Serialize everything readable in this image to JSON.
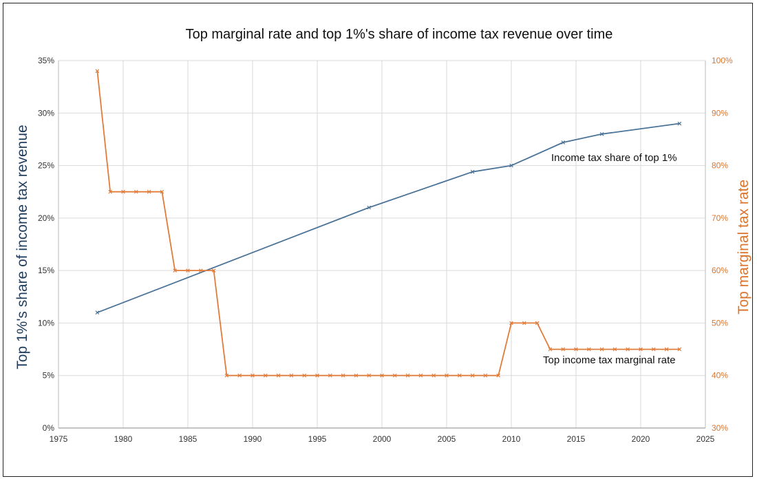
{
  "chart_data": {
    "type": "line",
    "title": "Top marginal rate and top 1%'s share of income tax revenue over time",
    "ylabel": "Top 1%'s share of income tax revenue",
    "y2label": "Top marginal tax rate",
    "xlim": [
      1975,
      2025
    ],
    "ylim": [
      0,
      35
    ],
    "y2lim": [
      30,
      100
    ],
    "x_ticks": [
      "1975",
      "1980",
      "1985",
      "1990",
      "1995",
      "2000",
      "2005",
      "2010",
      "2015",
      "2020",
      "2025"
    ],
    "y_ticks": [
      "0%",
      "5%",
      "10%",
      "15%",
      "20%",
      "25%",
      "30%",
      "35%"
    ],
    "y2_ticks": [
      "30%",
      "40%",
      "50%",
      "60%",
      "70%",
      "80%",
      "90%",
      "100%"
    ],
    "grid": true,
    "annotations": {
      "share": "Income tax share of top 1%",
      "rate": "Top income tax marginal rate"
    },
    "series": [
      {
        "key": "share",
        "axis": "left",
        "color": "#4a7397",
        "x": [
          1978,
          1999,
          2007,
          2010,
          2014,
          2017,
          2023
        ],
        "values": [
          11,
          21,
          24.4,
          25,
          27.2,
          28,
          29
        ]
      },
      {
        "key": "rate",
        "axis": "right",
        "color": "#e07b39",
        "x": [
          1978,
          1979,
          1980,
          1981,
          1982,
          1983,
          1984,
          1985,
          1986,
          1987,
          1988,
          1989,
          1990,
          1991,
          1992,
          1993,
          1994,
          1995,
          1996,
          1997,
          1998,
          1999,
          2000,
          2001,
          2002,
          2003,
          2004,
          2005,
          2006,
          2007,
          2008,
          2009,
          2010,
          2011,
          2012,
          2013,
          2014,
          2015,
          2016,
          2017,
          2018,
          2019,
          2020,
          2021,
          2022,
          2023
        ],
        "values": [
          98,
          75,
          75,
          75,
          75,
          75,
          60,
          60,
          60,
          60,
          40,
          40,
          40,
          40,
          40,
          40,
          40,
          40,
          40,
          40,
          40,
          40,
          40,
          40,
          40,
          40,
          40,
          40,
          40,
          40,
          40,
          40,
          50,
          50,
          50,
          45,
          45,
          45,
          45,
          45,
          45,
          45,
          45,
          45,
          45,
          45
        ]
      }
    ]
  }
}
